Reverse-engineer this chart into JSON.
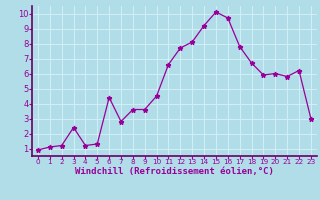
{
  "x": [
    0,
    1,
    2,
    3,
    4,
    5,
    6,
    7,
    8,
    9,
    10,
    11,
    12,
    13,
    14,
    15,
    16,
    17,
    18,
    19,
    20,
    21,
    22,
    23
  ],
  "y": [
    0.9,
    1.1,
    1.2,
    2.4,
    1.2,
    1.3,
    4.4,
    2.8,
    3.6,
    3.6,
    4.5,
    6.6,
    7.7,
    8.1,
    9.2,
    10.1,
    9.7,
    7.8,
    6.7,
    5.9,
    6.0,
    5.8,
    6.2,
    3.0
  ],
  "line_color": "#990099",
  "marker": "*",
  "marker_size": 3.5,
  "bg_color": "#b0dde8",
  "grid_color": "#d0eef5",
  "xlabel": "Windchill (Refroidissement éolien,°C)",
  "xlabel_color": "#990099",
  "tick_color": "#990099",
  "spine_color": "#660066",
  "ylim": [
    0.5,
    10.5
  ],
  "xlim": [
    -0.5,
    23.5
  ],
  "yticks": [
    1,
    2,
    3,
    4,
    5,
    6,
    7,
    8,
    9,
    10
  ],
  "xticks": [
    0,
    1,
    2,
    3,
    4,
    5,
    6,
    7,
    8,
    9,
    10,
    11,
    12,
    13,
    14,
    15,
    16,
    17,
    18,
    19,
    20,
    21,
    22,
    23
  ],
  "xlabel_fontsize": 6.5,
  "tick_fontsize_x": 5.2,
  "tick_fontsize_y": 6.0
}
